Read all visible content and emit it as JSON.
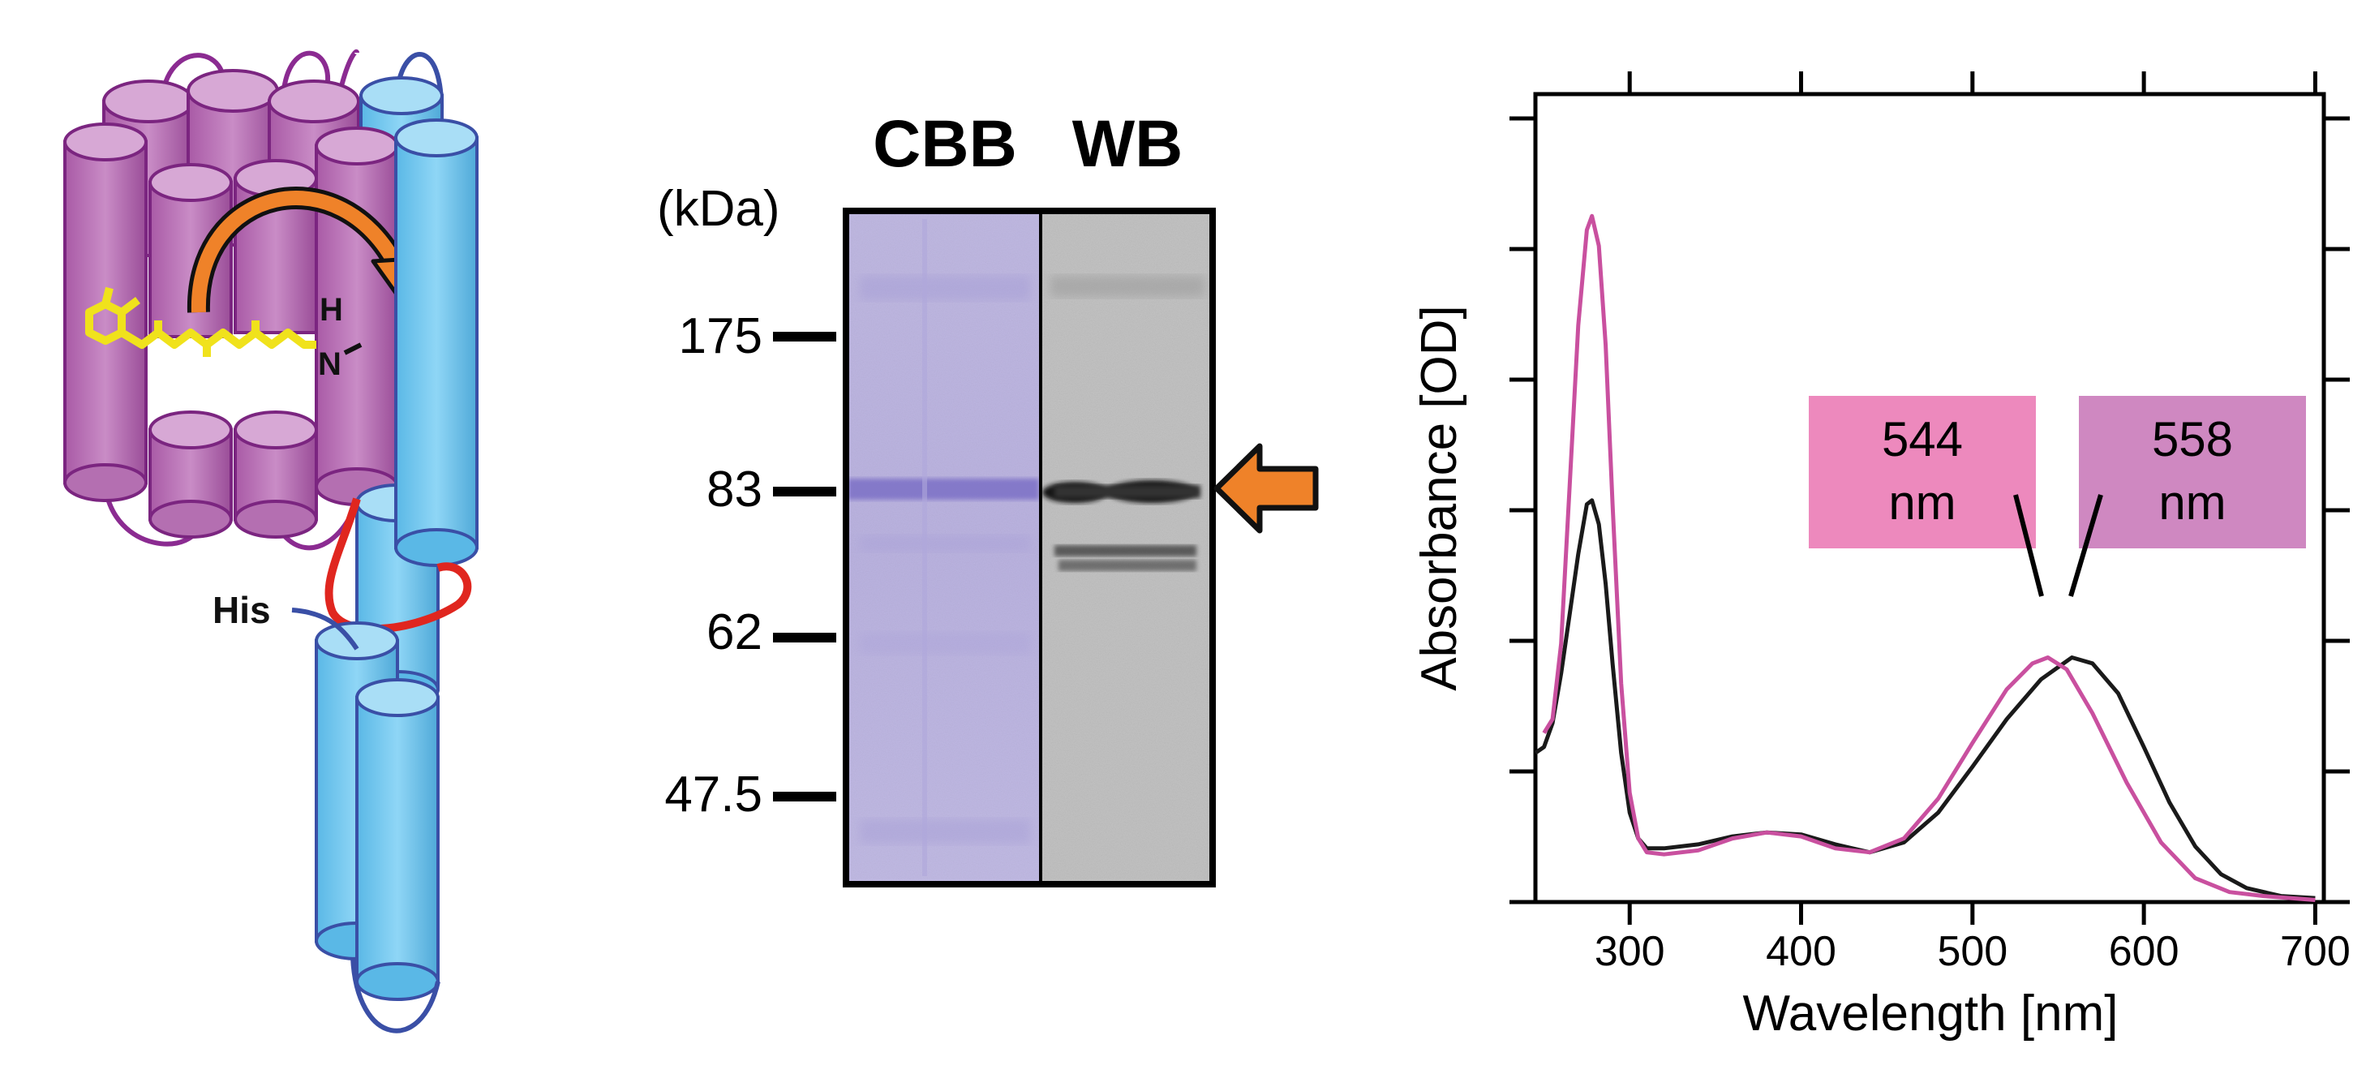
{
  "panel_a": {
    "his_label": "His",
    "h_label": "H",
    "n_label": "N"
  },
  "panel_b": {
    "lane_labels": [
      "CBB",
      "WB"
    ],
    "unit_label": "(kDa)",
    "markers": [
      "175",
      "83",
      "62",
      "47.5"
    ]
  },
  "chart_data": {
    "type": "line",
    "xlabel": "Wavelength [nm]",
    "ylabel": "Absorbance [OD]",
    "xlim": [
      245,
      705
    ],
    "x_ticks": [
      300,
      400,
      500,
      600,
      700
    ],
    "grid": false,
    "series": [
      {
        "color": "#c9509f",
        "peak_label": [
          "544",
          "nm"
        ],
        "points": [
          [
            250,
            0.85
          ],
          [
            255,
            0.92
          ],
          [
            260,
            1.3
          ],
          [
            265,
            2.1
          ],
          [
            270,
            2.9
          ],
          [
            275,
            3.38
          ],
          [
            278,
            3.45
          ],
          [
            282,
            3.3
          ],
          [
            286,
            2.8
          ],
          [
            290,
            2.0
          ],
          [
            295,
            1.1
          ],
          [
            300,
            0.55
          ],
          [
            305,
            0.32
          ],
          [
            310,
            0.25
          ],
          [
            320,
            0.24
          ],
          [
            340,
            0.26
          ],
          [
            360,
            0.32
          ],
          [
            380,
            0.35
          ],
          [
            400,
            0.33
          ],
          [
            420,
            0.27
          ],
          [
            440,
            0.25
          ],
          [
            460,
            0.32
          ],
          [
            480,
            0.52
          ],
          [
            500,
            0.8
          ],
          [
            520,
            1.07
          ],
          [
            535,
            1.2
          ],
          [
            544,
            1.23
          ],
          [
            555,
            1.17
          ],
          [
            570,
            0.95
          ],
          [
            590,
            0.6
          ],
          [
            610,
            0.3
          ],
          [
            630,
            0.12
          ],
          [
            650,
            0.05
          ],
          [
            670,
            0.03
          ],
          [
            700,
            0.01
          ]
        ]
      },
      {
        "color": "#1a1a1a",
        "peak_label": [
          "558",
          "nm"
        ],
        "points": [
          [
            245,
            0.75
          ],
          [
            250,
            0.78
          ],
          [
            255,
            0.9
          ],
          [
            260,
            1.15
          ],
          [
            265,
            1.45
          ],
          [
            270,
            1.75
          ],
          [
            275,
            2.0
          ],
          [
            278,
            2.02
          ],
          [
            282,
            1.9
          ],
          [
            286,
            1.6
          ],
          [
            290,
            1.2
          ],
          [
            295,
            0.75
          ],
          [
            300,
            0.45
          ],
          [
            305,
            0.32
          ],
          [
            310,
            0.27
          ],
          [
            320,
            0.27
          ],
          [
            340,
            0.29
          ],
          [
            360,
            0.33
          ],
          [
            380,
            0.35
          ],
          [
            400,
            0.34
          ],
          [
            420,
            0.29
          ],
          [
            440,
            0.25
          ],
          [
            460,
            0.3
          ],
          [
            480,
            0.45
          ],
          [
            500,
            0.68
          ],
          [
            520,
            0.92
          ],
          [
            540,
            1.12
          ],
          [
            558,
            1.23
          ],
          [
            570,
            1.2
          ],
          [
            585,
            1.05
          ],
          [
            600,
            0.78
          ],
          [
            615,
            0.5
          ],
          [
            630,
            0.28
          ],
          [
            645,
            0.14
          ],
          [
            660,
            0.07
          ],
          [
            680,
            0.03
          ],
          [
            700,
            0.02
          ]
        ]
      }
    ]
  }
}
